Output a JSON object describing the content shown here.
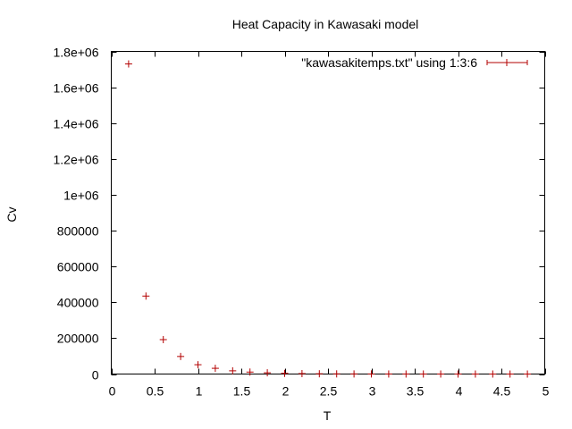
{
  "chart_data": {
    "type": "scatter",
    "title": "Heat Capacity in Kawasaki model",
    "xlabel": "T",
    "ylabel": "Cv",
    "xlim": [
      0,
      5
    ],
    "ylim": [
      0,
      1800000
    ],
    "x_ticks": [
      "0",
      "0.5",
      "1",
      "1.5",
      "2",
      "2.5",
      "3",
      "3.5",
      "4",
      "4.5",
      "5"
    ],
    "x_tick_values": [
      0,
      0.5,
      1,
      1.5,
      2,
      2.5,
      3,
      3.5,
      4,
      4.5,
      5
    ],
    "y_ticks": [
      "0",
      "200000",
      "400000",
      "600000",
      "800000",
      "1e+06",
      "1.2e+06",
      "1.4e+06",
      "1.6e+06",
      "1.8e+06"
    ],
    "y_tick_values": [
      0,
      200000,
      400000,
      600000,
      800000,
      1000000,
      1200000,
      1400000,
      1600000,
      1800000
    ],
    "grid": false,
    "legend_position": "top-right",
    "series": [
      {
        "name": "\"kawasakitemps.txt\" using 1:3:6",
        "color": "#b30000",
        "marker": "plus-with-errorbars",
        "x": [
          0.2,
          0.4,
          0.6,
          0.8,
          1.0,
          1.2,
          1.4,
          1.6,
          1.8,
          2.0,
          2.2,
          2.4,
          2.6,
          2.8,
          3.0,
          3.2,
          3.4,
          3.6,
          3.8,
          4.0,
          4.2,
          4.4,
          4.6,
          4.8
        ],
        "y": [
          1730000,
          435000,
          192000,
          98000,
          52000,
          32000,
          18000,
          11000,
          7000,
          4000,
          2500,
          1500,
          900,
          600,
          400,
          300,
          200,
          150,
          100,
          80,
          60,
          50,
          40,
          30
        ]
      }
    ]
  }
}
